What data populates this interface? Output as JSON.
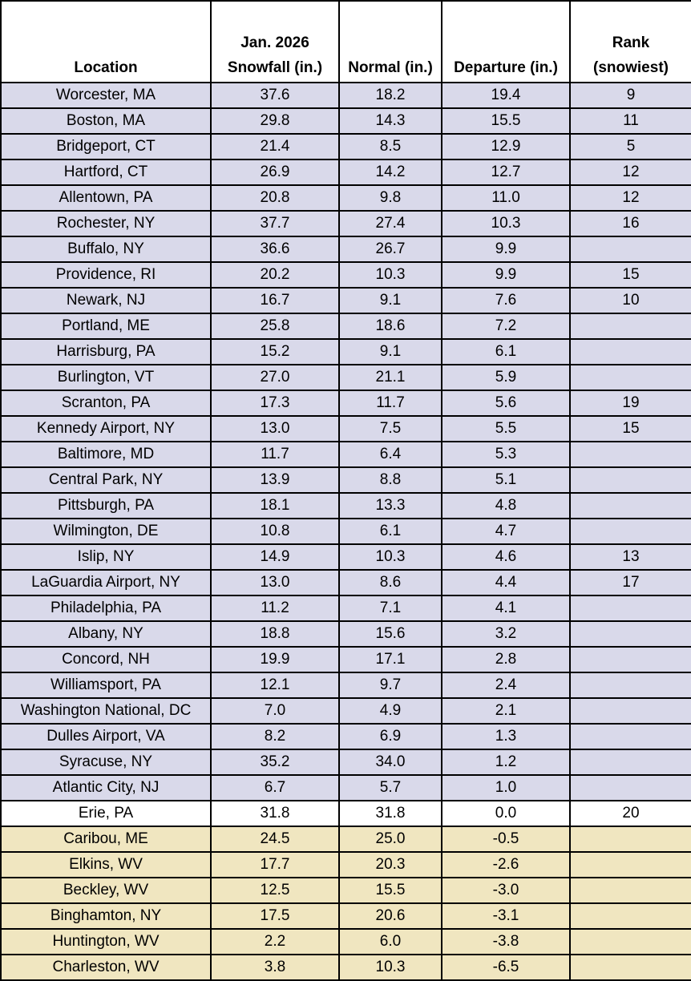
{
  "colors": {
    "above_normal": "#d9d9ea",
    "normal": "#ffffff",
    "below_normal": "#f0e6c0"
  },
  "headers": [
    {
      "line1": "",
      "line2": "Location"
    },
    {
      "line1": "Jan. 2026",
      "line2": "Snowfall (in.)"
    },
    {
      "line1": "",
      "line2": "Normal (in.)"
    },
    {
      "line1": "",
      "line2": "Departure (in.)"
    },
    {
      "line1": "Rank",
      "line2": "(snowiest)"
    }
  ],
  "rows": [
    {
      "location": "Worcester, MA",
      "snowfall": "37.6",
      "normal": "18.2",
      "departure": "19.4",
      "rank": "9",
      "group": "above_normal"
    },
    {
      "location": "Boston, MA",
      "snowfall": "29.8",
      "normal": "14.3",
      "departure": "15.5",
      "rank": "11",
      "group": "above_normal"
    },
    {
      "location": "Bridgeport, CT",
      "snowfall": "21.4",
      "normal": "8.5",
      "departure": "12.9",
      "rank": "5",
      "group": "above_normal"
    },
    {
      "location": "Hartford, CT",
      "snowfall": "26.9",
      "normal": "14.2",
      "departure": "12.7",
      "rank": "12",
      "group": "above_normal"
    },
    {
      "location": "Allentown, PA",
      "snowfall": "20.8",
      "normal": "9.8",
      "departure": "11.0",
      "rank": "12",
      "group": "above_normal"
    },
    {
      "location": "Rochester, NY",
      "snowfall": "37.7",
      "normal": "27.4",
      "departure": "10.3",
      "rank": "16",
      "group": "above_normal"
    },
    {
      "location": "Buffalo, NY",
      "snowfall": "36.6",
      "normal": "26.7",
      "departure": "9.9",
      "rank": "",
      "group": "above_normal"
    },
    {
      "location": "Providence, RI",
      "snowfall": "20.2",
      "normal": "10.3",
      "departure": "9.9",
      "rank": "15",
      "group": "above_normal"
    },
    {
      "location": "Newark, NJ",
      "snowfall": "16.7",
      "normal": "9.1",
      "departure": "7.6",
      "rank": "10",
      "group": "above_normal"
    },
    {
      "location": "Portland, ME",
      "snowfall": "25.8",
      "normal": "18.6",
      "departure": "7.2",
      "rank": "",
      "group": "above_normal"
    },
    {
      "location": "Harrisburg, PA",
      "snowfall": "15.2",
      "normal": "9.1",
      "departure": "6.1",
      "rank": "",
      "group": "above_normal"
    },
    {
      "location": "Burlington, VT",
      "snowfall": "27.0",
      "normal": "21.1",
      "departure": "5.9",
      "rank": "",
      "group": "above_normal"
    },
    {
      "location": "Scranton, PA",
      "snowfall": "17.3",
      "normal": "11.7",
      "departure": "5.6",
      "rank": "19",
      "group": "above_normal"
    },
    {
      "location": "Kennedy Airport, NY",
      "snowfall": "13.0",
      "normal": "7.5",
      "departure": "5.5",
      "rank": "15",
      "group": "above_normal"
    },
    {
      "location": "Baltimore, MD",
      "snowfall": "11.7",
      "normal": "6.4",
      "departure": "5.3",
      "rank": "",
      "group": "above_normal"
    },
    {
      "location": "Central Park, NY",
      "snowfall": "13.9",
      "normal": "8.8",
      "departure": "5.1",
      "rank": "",
      "group": "above_normal"
    },
    {
      "location": "Pittsburgh, PA",
      "snowfall": "18.1",
      "normal": "13.3",
      "departure": "4.8",
      "rank": "",
      "group": "above_normal"
    },
    {
      "location": "Wilmington, DE",
      "snowfall": "10.8",
      "normal": "6.1",
      "departure": "4.7",
      "rank": "",
      "group": "above_normal"
    },
    {
      "location": "Islip, NY",
      "snowfall": "14.9",
      "normal": "10.3",
      "departure": "4.6",
      "rank": "13",
      "group": "above_normal"
    },
    {
      "location": "LaGuardia Airport, NY",
      "snowfall": "13.0",
      "normal": "8.6",
      "departure": "4.4",
      "rank": "17",
      "group": "above_normal"
    },
    {
      "location": "Philadelphia, PA",
      "snowfall": "11.2",
      "normal": "7.1",
      "departure": "4.1",
      "rank": "",
      "group": "above_normal"
    },
    {
      "location": "Albany, NY",
      "snowfall": "18.8",
      "normal": "15.6",
      "departure": "3.2",
      "rank": "",
      "group": "above_normal"
    },
    {
      "location": "Concord, NH",
      "snowfall": "19.9",
      "normal": "17.1",
      "departure": "2.8",
      "rank": "",
      "group": "above_normal"
    },
    {
      "location": "Williamsport, PA",
      "snowfall": "12.1",
      "normal": "9.7",
      "departure": "2.4",
      "rank": "",
      "group": "above_normal"
    },
    {
      "location": "Washington National, DC",
      "snowfall": "7.0",
      "normal": "4.9",
      "departure": "2.1",
      "rank": "",
      "group": "above_normal"
    },
    {
      "location": "Dulles Airport, VA",
      "snowfall": "8.2",
      "normal": "6.9",
      "departure": "1.3",
      "rank": "",
      "group": "above_normal"
    },
    {
      "location": "Syracuse, NY",
      "snowfall": "35.2",
      "normal": "34.0",
      "departure": "1.2",
      "rank": "",
      "group": "above_normal"
    },
    {
      "location": "Atlantic City, NJ",
      "snowfall": "6.7",
      "normal": "5.7",
      "departure": "1.0",
      "rank": "",
      "group": "above_normal"
    },
    {
      "location": "Erie, PA",
      "snowfall": "31.8",
      "normal": "31.8",
      "departure": "0.0",
      "rank": "20",
      "group": "normal"
    },
    {
      "location": "Caribou, ME",
      "snowfall": "24.5",
      "normal": "25.0",
      "departure": "-0.5",
      "rank": "",
      "group": "below_normal"
    },
    {
      "location": "Elkins, WV",
      "snowfall": "17.7",
      "normal": "20.3",
      "departure": "-2.6",
      "rank": "",
      "group": "below_normal"
    },
    {
      "location": "Beckley, WV",
      "snowfall": "12.5",
      "normal": "15.5",
      "departure": "-3.0",
      "rank": "",
      "group": "below_normal"
    },
    {
      "location": "Binghamton, NY",
      "snowfall": "17.5",
      "normal": "20.6",
      "departure": "-3.1",
      "rank": "",
      "group": "below_normal"
    },
    {
      "location": "Huntington, WV",
      "snowfall": "2.2",
      "normal": "6.0",
      "departure": "-3.8",
      "rank": "",
      "group": "below_normal"
    },
    {
      "location": "Charleston, WV",
      "snowfall": "3.8",
      "normal": "10.3",
      "departure": "-6.5",
      "rank": "",
      "group": "below_normal"
    }
  ]
}
